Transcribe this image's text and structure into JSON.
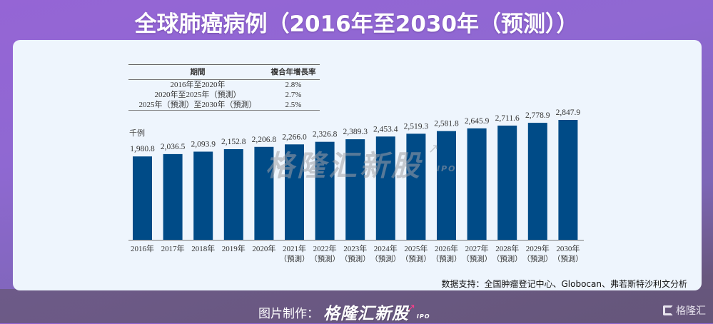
{
  "title": "全球肺癌病例（2016年至2030年（预测））",
  "cagr_table": {
    "headers": [
      "期間",
      "複合年增長率"
    ],
    "rows": [
      {
        "period": "2016年至2020年",
        "rate": "2.8%"
      },
      {
        "period": "2020年至2025年（預測）",
        "rate": "2.7%"
      },
      {
        "period": "2025年（預測）至2030年（預測）",
        "rate": "2.5%"
      }
    ]
  },
  "watermark": {
    "brand": "格隆汇新股",
    "ipo": "IPO"
  },
  "source": "数据支持：全国肿瘤登记中心、Globocan、弗若斯特沙利文分析",
  "credit": {
    "label": "图片制作：",
    "brand": "格隆汇新股",
    "ipo": "IPO"
  },
  "corner_logo": "格隆汇",
  "colors": {
    "bar": "#004b87",
    "panel": "#eef5fd",
    "title": "#ffffff"
  },
  "chart_data": {
    "type": "bar",
    "title": "全球肺癌病例（2016年至2030年（预测））",
    "ylabel": "千例",
    "xlabel": "",
    "ylim": [
      0,
      2847.9
    ],
    "grid": false,
    "categories": [
      "2016年",
      "2017年",
      "2018年",
      "2019年",
      "2020年",
      "2021年",
      "2022年",
      "2023年",
      "2024年",
      "2025年",
      "2026年",
      "2027年",
      "2028年",
      "2029年",
      "2030年"
    ],
    "category_sublabels": [
      "",
      "",
      "",
      "",
      "",
      "（預測）",
      "（預測）",
      "（預測）",
      "（預測）",
      "（預測）",
      "（預測）",
      "（預測）",
      "（預測）",
      "（預測）",
      "（預測）"
    ],
    "values": [
      1980.8,
      2036.5,
      2093.9,
      2152.8,
      2206.8,
      2266.0,
      2326.8,
      2389.3,
      2453.4,
      2519.3,
      2581.8,
      2645.9,
      2711.6,
      2778.9,
      2847.9
    ],
    "value_labels": [
      "1,980.8",
      "2,036.5",
      "2,093.9",
      "2,152.8",
      "2,206.8",
      "2,266.0",
      "2,326.8",
      "2,389.3",
      "2,453.4",
      "2,519.3",
      "2,581.8",
      "2,645.9",
      "2,711.6",
      "2,778.9",
      "2,847.9"
    ]
  }
}
